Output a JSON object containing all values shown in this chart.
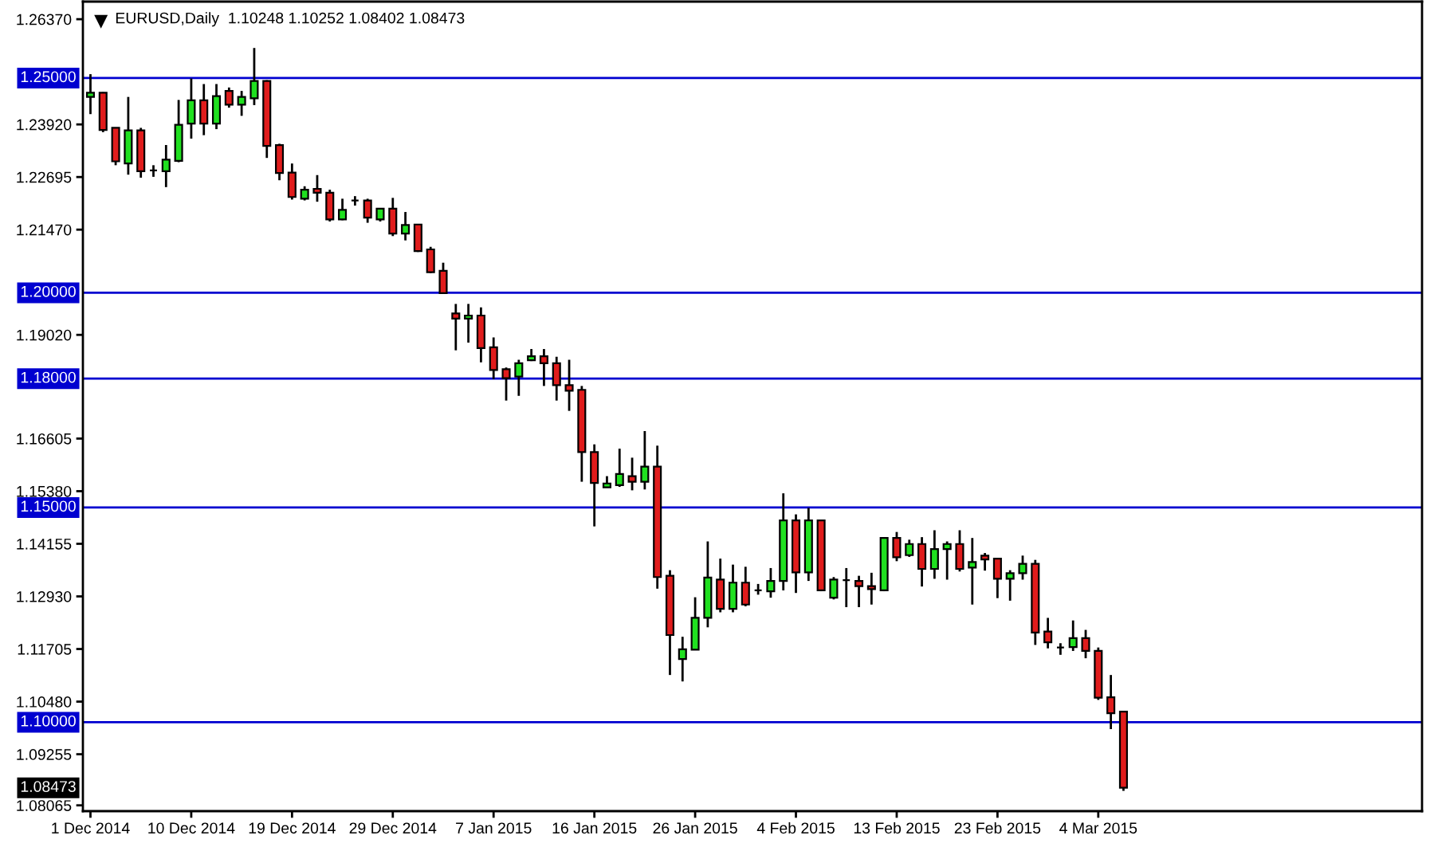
{
  "chart_data": {
    "type": "candlestick",
    "title": "EURUSD,Daily  1.10248 1.10252 1.08402 1.08473",
    "categories": [
      "1 Dec 2014",
      null,
      null,
      null,
      null,
      null,
      null,
      null,
      "10 Dec 2014",
      null,
      null,
      null,
      null,
      null,
      null,
      null,
      "19 Dec 2014",
      null,
      null,
      null,
      null,
      null,
      null,
      null,
      "29 Dec 2014",
      null,
      null,
      null,
      null,
      null,
      null,
      null,
      "7 Jan 2015",
      null,
      null,
      null,
      null,
      null,
      null,
      null,
      "16 Jan 2015",
      null,
      null,
      null,
      null,
      null,
      null,
      null,
      "26 Jan 2015",
      null,
      null,
      null,
      null,
      null,
      null,
      null,
      "4 Feb 2015",
      null,
      null,
      null,
      null,
      null,
      null,
      null,
      "13 Feb 2015",
      null,
      null,
      null,
      null,
      null,
      null,
      null,
      "23 Feb 2015",
      null,
      null,
      null,
      null,
      null,
      null,
      null,
      "4 Mar 2015",
      null,
      null
    ],
    "ohlc": [
      [
        1.2456,
        1.2509,
        1.2416,
        1.2466
      ],
      [
        1.2466,
        1.2467,
        1.2374,
        1.2379
      ],
      [
        1.2384,
        1.2384,
        1.2297,
        1.2306
      ],
      [
        1.2301,
        1.2456,
        1.2275,
        1.2378
      ],
      [
        1.2378,
        1.2384,
        1.2268,
        1.2283
      ],
      [
        1.2285,
        1.2297,
        1.227,
        1.2285
      ],
      [
        1.2283,
        1.2344,
        1.2246,
        1.231
      ],
      [
        1.2307,
        1.2449,
        1.2304,
        1.2391
      ],
      [
        1.2394,
        1.2499,
        1.2359,
        1.2448
      ],
      [
        1.2448,
        1.2486,
        1.2367,
        1.2394
      ],
      [
        1.2394,
        1.2486,
        1.2381,
        1.2458
      ],
      [
        1.247,
        1.2478,
        1.2431,
        1.2438
      ],
      [
        1.2438,
        1.247,
        1.2412,
        1.2456
      ],
      [
        1.2453,
        1.257,
        1.2437,
        1.2493
      ],
      [
        1.2493,
        1.2495,
        1.2314,
        1.2342
      ],
      [
        1.2344,
        1.2347,
        1.2262,
        1.2279
      ],
      [
        1.228,
        1.2301,
        1.2217,
        1.2223
      ],
      [
        1.2219,
        1.2248,
        1.2215,
        1.224
      ],
      [
        1.2242,
        1.2274,
        1.2212,
        1.2233
      ],
      [
        1.2233,
        1.224,
        1.2166,
        1.2171
      ],
      [
        1.2171,
        1.2219,
        1.2169,
        1.2193
      ],
      [
        1.2215,
        1.2225,
        1.2203,
        1.2215
      ],
      [
        1.2215,
        1.2219,
        1.2163,
        1.2175
      ],
      [
        1.2171,
        1.2196,
        1.2166,
        1.2196
      ],
      [
        1.2196,
        1.2221,
        1.2132,
        1.2138
      ],
      [
        1.2138,
        1.2188,
        1.2122,
        1.2158
      ],
      [
        1.2159,
        1.2159,
        1.2095,
        1.2097
      ],
      [
        1.2101,
        1.2107,
        1.2046,
        1.2048
      ],
      [
        1.2051,
        1.207,
        1.1999,
        1.1999
      ],
      [
        1.1952,
        1.1974,
        1.1866,
        1.194
      ],
      [
        1.194,
        1.1974,
        1.1884,
        1.1947
      ],
      [
        1.1947,
        1.1966,
        1.1838,
        1.1871
      ],
      [
        1.1873,
        1.1896,
        1.1799,
        1.182
      ],
      [
        1.1822,
        1.1826,
        1.1749,
        1.1801
      ],
      [
        1.1805,
        1.1844,
        1.176,
        1.1836
      ],
      [
        1.1843,
        1.1869,
        1.1841,
        1.1852
      ],
      [
        1.1852,
        1.1869,
        1.1783,
        1.1836
      ],
      [
        1.1836,
        1.1851,
        1.1749,
        1.1785
      ],
      [
        1.1785,
        1.1844,
        1.1725,
        1.1772
      ],
      [
        1.1774,
        1.1783,
        1.156,
        1.1629
      ],
      [
        1.1629,
        1.1647,
        1.1456,
        1.1557
      ],
      [
        1.1547,
        1.1573,
        1.1547,
        1.1556
      ],
      [
        1.1552,
        1.1637,
        1.1548,
        1.1578
      ],
      [
        1.1573,
        1.1616,
        1.154,
        1.156
      ],
      [
        1.156,
        1.1678,
        1.1542,
        1.1595
      ],
      [
        1.1595,
        1.1644,
        1.1311,
        1.1338
      ],
      [
        1.1341,
        1.1354,
        1.111,
        1.1203
      ],
      [
        1.1147,
        1.1199,
        1.1095,
        1.117
      ],
      [
        1.1169,
        1.1291,
        1.1168,
        1.1243
      ],
      [
        1.1243,
        1.1421,
        1.1221,
        1.1337
      ],
      [
        1.1332,
        1.1381,
        1.1256,
        1.1264
      ],
      [
        1.1264,
        1.1367,
        1.1256,
        1.1325
      ],
      [
        1.1325,
        1.1362,
        1.127,
        1.1274
      ],
      [
        1.1307,
        1.1322,
        1.1297,
        1.1307
      ],
      [
        1.1305,
        1.1359,
        1.129,
        1.1329
      ],
      [
        1.1329,
        1.1533,
        1.1307,
        1.147
      ],
      [
        1.147,
        1.1484,
        1.1301,
        1.1349
      ],
      [
        1.1349,
        1.1499,
        1.1329,
        1.147
      ],
      [
        1.147,
        1.147,
        1.1305,
        1.1307
      ],
      [
        1.129,
        1.1338,
        1.1286,
        1.1332
      ],
      [
        1.1331,
        1.1359,
        1.1268,
        1.1331
      ],
      [
        1.1329,
        1.1341,
        1.1268,
        1.1317
      ],
      [
        1.1317,
        1.1348,
        1.1274,
        1.131
      ],
      [
        1.1307,
        1.1429,
        1.1305,
        1.1429
      ],
      [
        1.1429,
        1.1443,
        1.1375,
        1.1384
      ],
      [
        1.1389,
        1.1425,
        1.1385,
        1.1415
      ],
      [
        1.1415,
        1.1431,
        1.1316,
        1.1357
      ],
      [
        1.1357,
        1.1447,
        1.1334,
        1.1403
      ],
      [
        1.1403,
        1.1421,
        1.1332,
        1.1415
      ],
      [
        1.1415,
        1.1447,
        1.1351,
        1.1357
      ],
      [
        1.136,
        1.1429,
        1.1274,
        1.1373
      ],
      [
        1.1388,
        1.1394,
        1.1353,
        1.1379
      ],
      [
        1.1381,
        1.1381,
        1.1289,
        1.1334
      ],
      [
        1.1334,
        1.1354,
        1.1283,
        1.1347
      ],
      [
        1.1347,
        1.1388,
        1.1332,
        1.1369
      ],
      [
        1.1369,
        1.1378,
        1.118,
        1.1209
      ],
      [
        1.1211,
        1.1243,
        1.1172,
        1.1186
      ],
      [
        1.1174,
        1.1184,
        1.1157,
        1.1174
      ],
      [
        1.1175,
        1.1237,
        1.1166,
        1.1196
      ],
      [
        1.1196,
        1.1215,
        1.1149,
        1.1166
      ],
      [
        1.1166,
        1.1174,
        1.1052,
        1.1057
      ],
      [
        1.1058,
        1.111,
        1.0984,
        1.1021
      ],
      [
        1.10248,
        1.10252,
        1.08402,
        1.08473
      ]
    ],
    "colors": [
      "#20e020",
      "#e01c1c",
      "#e01c1c",
      "#20e020",
      "#e01c1c",
      "#000000",
      "#20e020",
      "#20e020",
      "#20e020",
      "#e01c1c",
      "#20e020",
      "#e01c1c",
      "#20e020",
      "#20e020",
      "#e01c1c",
      "#e01c1c",
      "#e01c1c",
      "#20e020",
      "#e01c1c",
      "#e01c1c",
      "#20e020",
      "#000000",
      "#e01c1c",
      "#20e020",
      "#e01c1c",
      "#20e020",
      "#e01c1c",
      "#e01c1c",
      "#e01c1c",
      "#e01c1c",
      "#20e020",
      "#e01c1c",
      "#e01c1c",
      "#e01c1c",
      "#20e020",
      "#20e020",
      "#e01c1c",
      "#e01c1c",
      "#e01c1c",
      "#e01c1c",
      "#e01c1c",
      "#20e020",
      "#20e020",
      "#e01c1c",
      "#20e020",
      "#e01c1c",
      "#e01c1c",
      "#20e020",
      "#20e020",
      "#20e020",
      "#e01c1c",
      "#20e020",
      "#e01c1c",
      "#000000",
      "#20e020",
      "#20e020",
      "#e01c1c",
      "#20e020",
      "#e01c1c",
      "#20e020",
      "#000000",
      "#e01c1c",
      "#e01c1c",
      "#20e020",
      "#e01c1c",
      "#20e020",
      "#e01c1c",
      "#20e020",
      "#20e020",
      "#e01c1c",
      "#20e020",
      "#e01c1c",
      "#e01c1c",
      "#20e020",
      "#20e020",
      "#e01c1c",
      "#e01c1c",
      "#000000",
      "#20e020",
      "#e01c1c",
      "#e01c1c",
      "#e01c1c",
      "#e01c1c"
    ],
    "ylim": [
      1.0793,
      1.2678
    ],
    "yticks": [
      {
        "value": 1.2637,
        "label": "1.26370"
      },
      {
        "value": 1.2392,
        "label": "1.23920"
      },
      {
        "value": 1.22695,
        "label": "1.22695"
      },
      {
        "value": 1.2147,
        "label": "1.21470"
      },
      {
        "value": 1.1902,
        "label": "1.19020"
      },
      {
        "value": 1.16605,
        "label": "1.16605"
      },
      {
        "value": 1.1538,
        "label": "1.15380"
      },
      {
        "value": 1.14155,
        "label": "1.14155"
      },
      {
        "value": 1.1293,
        "label": "1.12930"
      },
      {
        "value": 1.11705,
        "label": "1.11705"
      },
      {
        "value": 1.1048,
        "label": "1.10480"
      },
      {
        "value": 1.09255,
        "label": "1.09255"
      },
      {
        "value": 1.08065,
        "label": "1.08065"
      }
    ],
    "ref_lines": [
      {
        "axis": "y",
        "value": 1.25,
        "label": "1.25000",
        "color": "#0000d0"
      },
      {
        "axis": "y",
        "value": 1.2,
        "label": "1.20000",
        "color": "#0000d0"
      },
      {
        "axis": "y",
        "value": 1.18,
        "label": "1.18000",
        "color": "#0000d0"
      },
      {
        "axis": "y",
        "value": 1.15,
        "label": "1.15000",
        "color": "#0000d0"
      },
      {
        "axis": "y",
        "value": 1.1,
        "label": "1.10000",
        "color": "#0000d0"
      }
    ],
    "annotations": [
      "1.08473"
    ]
  }
}
